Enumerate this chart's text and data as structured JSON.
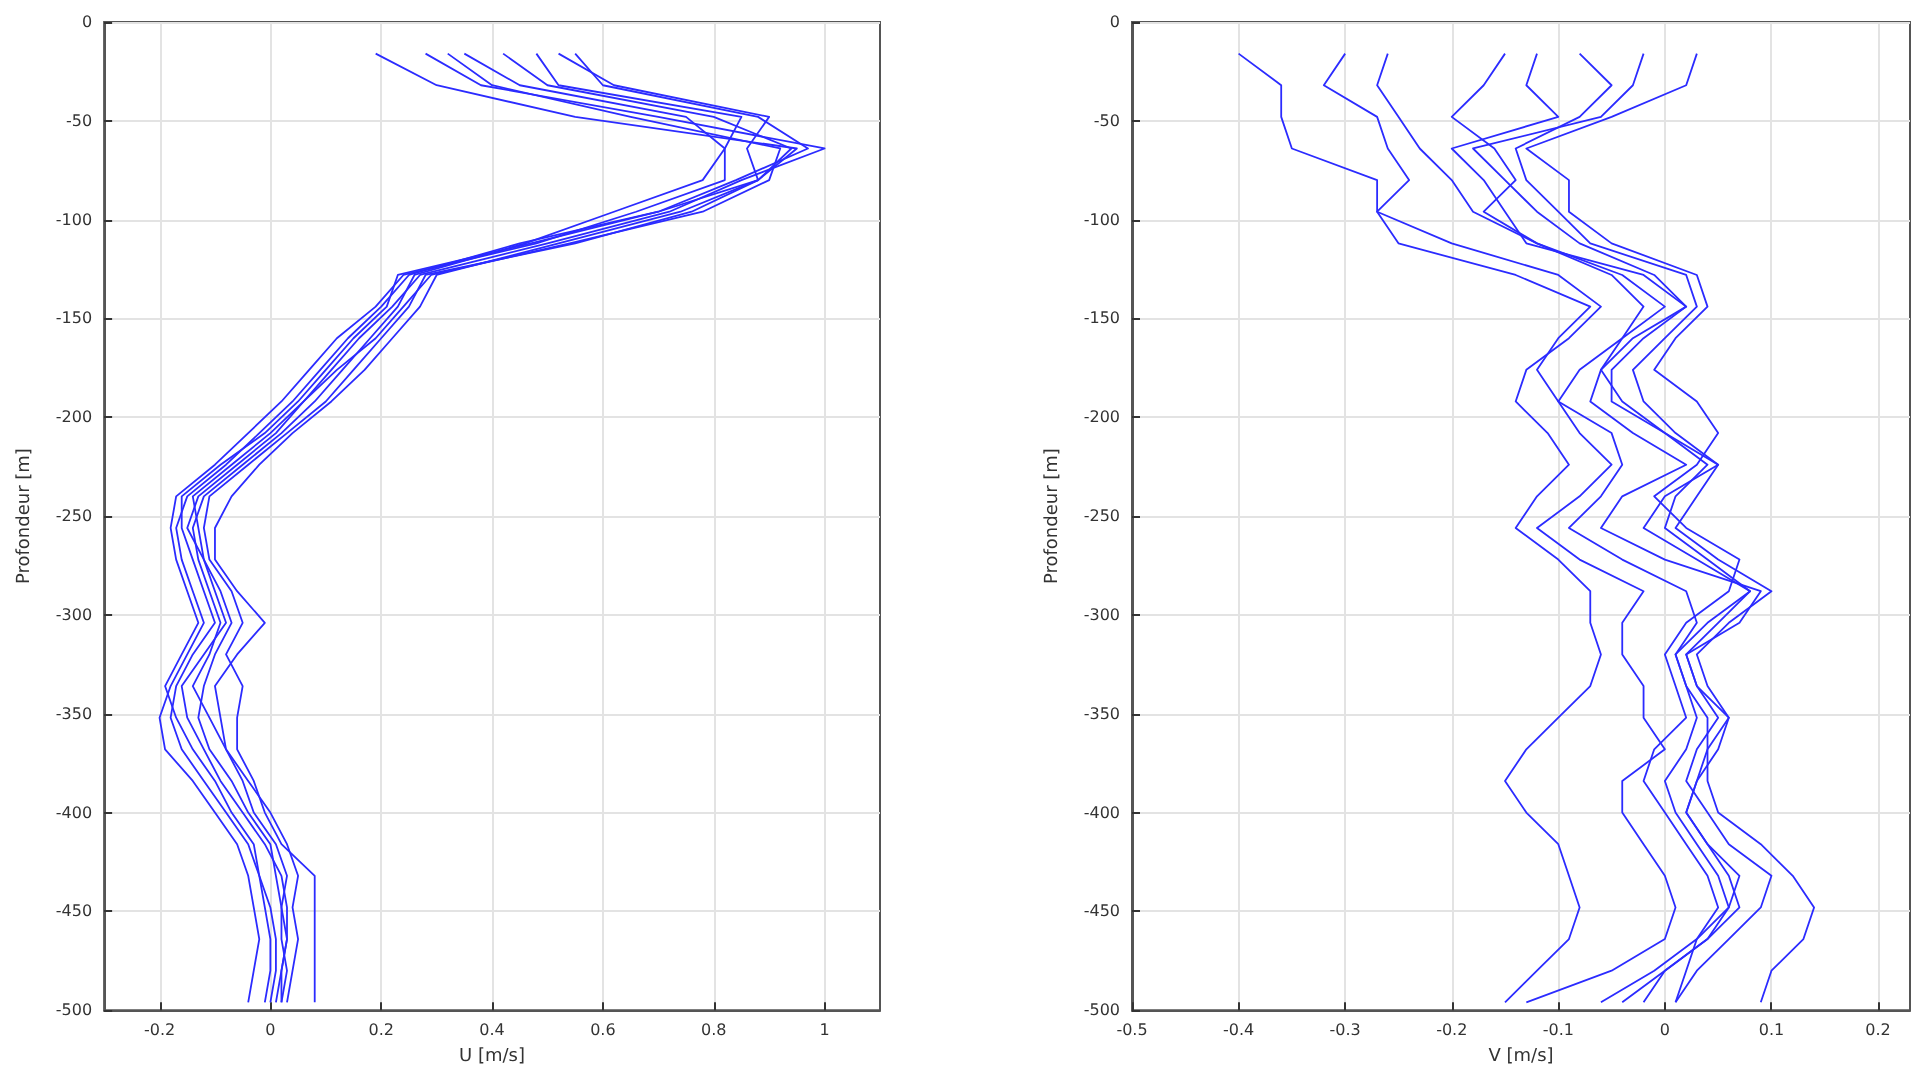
{
  "chart_data": [
    {
      "type": "line",
      "xlabel": "U [m/s]",
      "ylabel": "Profondeur [m]",
      "xlim": [
        -0.3,
        1.1
      ],
      "xticks": [
        -0.2,
        0,
        0.2,
        0.4,
        0.6,
        0.8,
        1
      ],
      "ylim": [
        -500,
        0
      ],
      "yticks": [
        -500,
        -450,
        -400,
        -350,
        -300,
        -250,
        -200,
        -150,
        -100,
        -50,
        0
      ],
      "grid": true,
      "series": [
        {
          "color": "#2b2bff",
          "x": [
            0.19,
            0.3,
            0.55,
            0.95,
            0.88,
            0.7,
            0.45,
            0.25,
            0.2,
            0.14,
            0.09,
            0.04,
            -0.02,
            -0.08,
            -0.15,
            -0.17,
            -0.16,
            -0.14,
            -0.12,
            -0.15,
            -0.18,
            -0.2,
            -0.19,
            -0.14,
            -0.1,
            -0.06,
            -0.04,
            -0.03,
            -0.02,
            -0.03,
            -0.04
          ],
          "values": [
            -16,
            -32,
            -48,
            -64,
            -80,
            -96,
            -112,
            -128,
            -144,
            -160,
            -176,
            -192,
            -208,
            -224,
            -240,
            -256,
            -272,
            -288,
            -304,
            -320,
            -336,
            -352,
            -368,
            -384,
            -400,
            -416,
            -432,
            -448,
            -464,
            -480,
            -496
          ]
        },
        {
          "color": "#2b2bff",
          "x": [
            0.28,
            0.38,
            0.7,
            1.0,
            0.85,
            0.72,
            0.5,
            0.27,
            0.22,
            0.16,
            0.11,
            0.06,
            0.01,
            -0.06,
            -0.13,
            -0.15,
            -0.12,
            -0.1,
            -0.08,
            -0.12,
            -0.16,
            -0.15,
            -0.12,
            -0.09,
            -0.05,
            -0.01,
            0.02,
            0.03,
            0.03,
            0.02,
            0.01
          ],
          "values": [
            -16,
            -32,
            -48,
            -64,
            -80,
            -96,
            -112,
            -128,
            -144,
            -160,
            -176,
            -192,
            -208,
            -224,
            -240,
            -256,
            -272,
            -288,
            -304,
            -320,
            -336,
            -352,
            -368,
            -384,
            -400,
            -416,
            -432,
            -448,
            -464,
            -480,
            -496
          ]
        },
        {
          "color": "#2b2bff",
          "x": [
            0.35,
            0.45,
            0.75,
            0.82,
            0.82,
            0.66,
            0.48,
            0.24,
            0.19,
            0.12,
            0.07,
            0.02,
            -0.04,
            -0.1,
            -0.17,
            -0.18,
            -0.17,
            -0.15,
            -0.13,
            -0.16,
            -0.19,
            -0.17,
            -0.14,
            -0.1,
            -0.07,
            -0.03,
            -0.02,
            -0.01,
            0.0,
            0.0,
            -0.01
          ],
          "values": [
            -16,
            -32,
            -48,
            -64,
            -80,
            -96,
            -112,
            -128,
            -144,
            -160,
            -176,
            -192,
            -208,
            -224,
            -240,
            -256,
            -272,
            -288,
            -304,
            -320,
            -336,
            -352,
            -368,
            -384,
            -400,
            -416,
            -432,
            -448,
            -464,
            -480,
            -496
          ]
        },
        {
          "color": "#2b2bff",
          "x": [
            0.42,
            0.5,
            0.8,
            0.94,
            0.88,
            0.74,
            0.52,
            0.3,
            0.27,
            0.22,
            0.17,
            0.11,
            0.04,
            -0.02,
            -0.07,
            -0.1,
            -0.1,
            -0.06,
            -0.01,
            -0.06,
            -0.1,
            -0.09,
            -0.08,
            -0.04,
            0.0,
            0.03,
            0.05,
            0.04,
            0.05,
            0.04,
            0.03
          ],
          "values": [
            -16,
            -32,
            -48,
            -64,
            -80,
            -96,
            -112,
            -128,
            -144,
            -160,
            -176,
            -192,
            -208,
            -224,
            -240,
            -256,
            -272,
            -288,
            -304,
            -320,
            -336,
            -352,
            -368,
            -384,
            -400,
            -416,
            -432,
            -448,
            -464,
            -480,
            -496
          ]
        },
        {
          "color": "#2b2bff",
          "x": [
            0.48,
            0.52,
            0.85,
            0.82,
            0.78,
            0.62,
            0.46,
            0.26,
            0.23,
            0.18,
            0.13,
            0.08,
            0.02,
            -0.05,
            -0.12,
            -0.14,
            -0.13,
            -0.11,
            -0.09,
            -0.11,
            -0.14,
            -0.11,
            -0.08,
            -0.05,
            -0.03,
            0.01,
            0.03,
            0.02,
            0.02,
            0.03,
            0.02
          ],
          "values": [
            -16,
            -32,
            -48,
            -64,
            -80,
            -96,
            -112,
            -128,
            -144,
            -160,
            -176,
            -192,
            -208,
            -224,
            -240,
            -256,
            -272,
            -288,
            -304,
            -320,
            -336,
            -352,
            -368,
            -384,
            -400,
            -416,
            -432,
            -448,
            -464,
            -480,
            -496
          ]
        },
        {
          "color": "#2b2bff",
          "x": [
            0.52,
            0.62,
            0.9,
            0.86,
            0.88,
            0.76,
            0.55,
            0.28,
            0.25,
            0.2,
            0.15,
            0.1,
            0.03,
            -0.04,
            -0.11,
            -0.12,
            -0.11,
            -0.07,
            -0.05,
            -0.08,
            -0.05,
            -0.06,
            -0.06,
            -0.03,
            -0.01,
            0.02,
            0.08,
            0.08,
            0.08,
            0.08,
            0.08
          ],
          "values": [
            -16,
            -32,
            -48,
            -64,
            -80,
            -96,
            -112,
            -128,
            -144,
            -160,
            -176,
            -192,
            -208,
            -224,
            -240,
            -256,
            -272,
            -288,
            -304,
            -320,
            -336,
            -352,
            -368,
            -384,
            -400,
            -416,
            -432,
            -448,
            -464,
            -480,
            -496
          ]
        },
        {
          "color": "#2b2bff",
          "x": [
            0.55,
            0.6,
            0.88,
            0.97,
            0.84,
            0.7,
            0.47,
            0.23,
            0.21,
            0.15,
            0.1,
            0.05,
            -0.01,
            -0.09,
            -0.16,
            -0.16,
            -0.14,
            -0.12,
            -0.1,
            -0.14,
            -0.17,
            -0.18,
            -0.16,
            -0.12,
            -0.08,
            -0.04,
            -0.02,
            0.0,
            0.01,
            0.01,
            0.0
          ],
          "values": [
            -16,
            -32,
            -48,
            -64,
            -80,
            -96,
            -112,
            -128,
            -144,
            -160,
            -176,
            -192,
            -208,
            -224,
            -240,
            -256,
            -272,
            -288,
            -304,
            -320,
            -336,
            -352,
            -368,
            -384,
            -400,
            -416,
            -432,
            -448,
            -464,
            -480,
            -496
          ]
        },
        {
          "color": "#2b2bff",
          "x": [
            0.32,
            0.4,
            0.65,
            0.92,
            0.9,
            0.78,
            0.54,
            0.29,
            0.24,
            0.19,
            0.12,
            0.06,
            0.0,
            -0.07,
            -0.14,
            -0.13,
            -0.12,
            -0.09,
            -0.07,
            -0.1,
            -0.12,
            -0.13,
            -0.11,
            -0.07,
            -0.04,
            0.0,
            0.01,
            0.02,
            0.03,
            0.02,
            0.02
          ],
          "values": [
            -16,
            -32,
            -48,
            -64,
            -80,
            -96,
            -112,
            -128,
            -144,
            -160,
            -176,
            -192,
            -208,
            -224,
            -240,
            -256,
            -272,
            -288,
            -304,
            -320,
            -336,
            -352,
            -368,
            -384,
            -400,
            -416,
            -432,
            -448,
            -464,
            -480,
            -496
          ]
        }
      ]
    },
    {
      "type": "line",
      "xlabel": "V [m/s]",
      "ylabel": "Profondeur [m]",
      "xlim": [
        -0.5,
        0.23
      ],
      "xticks": [
        -0.5,
        -0.4,
        -0.3,
        -0.2,
        -0.1,
        0,
        0.1,
        0.2
      ],
      "ylim": [
        -500,
        0
      ],
      "yticks": [
        -500,
        -450,
        -400,
        -350,
        -300,
        -250,
        -200,
        -150,
        -100,
        -50,
        0
      ],
      "grid": true,
      "series": [
        {
          "color": "#2b2bff",
          "x": [
            -0.4,
            -0.36,
            -0.36,
            -0.35,
            -0.27,
            -0.27,
            -0.2,
            -0.1,
            -0.06,
            -0.09,
            -0.13,
            -0.14,
            -0.11,
            -0.09,
            -0.12,
            -0.14,
            -0.1,
            -0.07,
            -0.07,
            -0.06,
            -0.07,
            -0.1,
            -0.13,
            -0.15,
            -0.13,
            -0.1,
            -0.09,
            -0.08,
            -0.09,
            -0.12,
            -0.15
          ],
          "values": [
            -16,
            -32,
            -48,
            -64,
            -80,
            -96,
            -112,
            -128,
            -144,
            -160,
            -176,
            -192,
            -208,
            -224,
            -240,
            -256,
            -272,
            -288,
            -304,
            -320,
            -336,
            -352,
            -368,
            -384,
            -400,
            -416,
            -432,
            -448,
            -464,
            -480,
            -496
          ]
        },
        {
          "color": "#2b2bff",
          "x": [
            -0.3,
            -0.32,
            -0.27,
            -0.26,
            -0.24,
            -0.27,
            -0.25,
            -0.14,
            -0.07,
            -0.1,
            -0.12,
            -0.1,
            -0.08,
            -0.05,
            -0.08,
            -0.12,
            -0.08,
            -0.02,
            -0.04,
            -0.04,
            -0.02,
            -0.02,
            0.0,
            -0.04,
            -0.04,
            -0.02,
            0.0,
            0.01,
            0.0,
            -0.05,
            -0.13
          ],
          "values": [
            -16,
            -32,
            -48,
            -64,
            -80,
            -96,
            -112,
            -128,
            -144,
            -160,
            -176,
            -192,
            -208,
            -224,
            -240,
            -256,
            -272,
            -288,
            -304,
            -320,
            -336,
            -352,
            -368,
            -384,
            -400,
            -416,
            -432,
            -448,
            -464,
            -480,
            -496
          ]
        },
        {
          "color": "#2b2bff",
          "x": [
            -0.26,
            -0.27,
            -0.25,
            -0.23,
            -0.2,
            -0.18,
            -0.12,
            -0.05,
            -0.02,
            -0.04,
            -0.08,
            -0.1,
            -0.05,
            -0.04,
            -0.06,
            -0.09,
            -0.04,
            0.02,
            0.03,
            0.01,
            0.02,
            0.04,
            0.04,
            0.03,
            0.02,
            0.04,
            0.07,
            0.06,
            0.04,
            0.0,
            -0.02
          ],
          "values": [
            -16,
            -32,
            -48,
            -64,
            -80,
            -96,
            -112,
            -128,
            -144,
            -160,
            -176,
            -192,
            -208,
            -224,
            -240,
            -256,
            -272,
            -288,
            -304,
            -320,
            -336,
            -352,
            -368,
            -384,
            -400,
            -416,
            -432,
            -448,
            -464,
            -480,
            -496
          ]
        },
        {
          "color": "#2b2bff",
          "x": [
            -0.15,
            -0.17,
            -0.2,
            -0.16,
            -0.14,
            -0.17,
            -0.12,
            -0.04,
            0.0,
            -0.04,
            -0.06,
            -0.04,
            0.0,
            0.05,
            0.0,
            -0.02,
            0.03,
            0.08,
            0.05,
            0.02,
            0.03,
            0.05,
            0.03,
            0.02,
            0.04,
            0.06,
            0.1,
            0.09,
            0.06,
            0.03,
            0.01
          ],
          "values": [
            -16,
            -32,
            -48,
            -64,
            -80,
            -96,
            -112,
            -128,
            -144,
            -160,
            -176,
            -192,
            -208,
            -224,
            -240,
            -256,
            -272,
            -288,
            -304,
            -320,
            -336,
            -352,
            -368,
            -384,
            -400,
            -416,
            -432,
            -448,
            -464,
            -480,
            -496
          ]
        },
        {
          "color": "#2b2bff",
          "x": [
            -0.12,
            -0.13,
            -0.1,
            -0.2,
            -0.17,
            -0.15,
            -0.13,
            -0.02,
            0.02,
            -0.03,
            -0.06,
            -0.07,
            -0.03,
            0.02,
            -0.04,
            -0.06,
            0.0,
            0.09,
            0.07,
            0.02,
            0.03,
            0.06,
            0.04,
            0.04,
            0.05,
            0.09,
            0.12,
            0.14,
            0.13,
            0.1,
            0.09
          ],
          "values": [
            -16,
            -32,
            -48,
            -64,
            -80,
            -96,
            -112,
            -128,
            -144,
            -160,
            -176,
            -192,
            -208,
            -224,
            -240,
            -256,
            -272,
            -288,
            -304,
            -320,
            -336,
            -352,
            -368,
            -384,
            -400,
            -416,
            -432,
            -448,
            -464,
            -480,
            -496
          ]
        },
        {
          "color": "#2b2bff",
          "x": [
            -0.08,
            -0.05,
            -0.08,
            -0.14,
            -0.13,
            -0.1,
            -0.07,
            0.02,
            0.03,
            0.0,
            -0.03,
            -0.02,
            0.01,
            0.05,
            0.03,
            0.01,
            0.05,
            0.1,
            0.06,
            0.03,
            0.04,
            0.06,
            0.05,
            0.03,
            0.02,
            0.04,
            0.06,
            0.07,
            0.04,
            0.0,
            -0.04
          ],
          "values": [
            -16,
            -32,
            -48,
            -64,
            -80,
            -96,
            -112,
            -128,
            -144,
            -160,
            -176,
            -192,
            -208,
            -224,
            -240,
            -256,
            -272,
            -288,
            -304,
            -320,
            -336,
            -352,
            -368,
            -384,
            -400,
            -416,
            -432,
            -448,
            -464,
            -480,
            -496
          ]
        },
        {
          "color": "#2b2bff",
          "x": [
            -0.02,
            -0.03,
            -0.06,
            -0.18,
            -0.15,
            -0.12,
            -0.08,
            -0.01,
            0.02,
            -0.02,
            -0.05,
            -0.05,
            0.0,
            0.04,
            0.01,
            0.0,
            0.04,
            0.08,
            0.04,
            0.01,
            0.02,
            0.03,
            0.02,
            0.0,
            0.01,
            0.03,
            0.05,
            0.06,
            0.03,
            -0.01,
            -0.06
          ],
          "values": [
            -16,
            -32,
            -48,
            -64,
            -80,
            -96,
            -112,
            -128,
            -144,
            -160,
            -176,
            -192,
            -208,
            -224,
            -240,
            -256,
            -272,
            -288,
            -304,
            -320,
            -336,
            -352,
            -368,
            -384,
            -400,
            -416,
            -432,
            -448,
            -464,
            -480,
            -496
          ]
        },
        {
          "color": "#2b2bff",
          "x": [
            0.03,
            0.02,
            -0.05,
            -0.13,
            -0.09,
            -0.09,
            -0.05,
            0.03,
            0.04,
            0.01,
            -0.01,
            0.03,
            0.05,
            0.03,
            -0.01,
            0.02,
            0.07,
            0.06,
            0.02,
            0.0,
            0.01,
            0.02,
            -0.01,
            -0.02,
            0.0,
            0.02,
            0.04,
            0.05,
            0.03,
            0.02,
            0.01
          ],
          "values": [
            -16,
            -32,
            -48,
            -64,
            -80,
            -96,
            -112,
            -128,
            -144,
            -160,
            -176,
            -192,
            -208,
            -224,
            -240,
            -256,
            -272,
            -288,
            -304,
            -320,
            -336,
            -352,
            -368,
            -384,
            -400,
            -416,
            -432,
            -448,
            -464,
            -480,
            -496
          ]
        }
      ]
    }
  ]
}
